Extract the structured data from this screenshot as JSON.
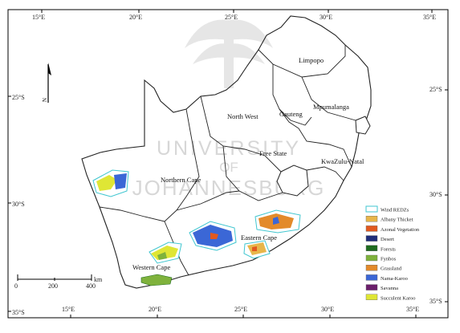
{
  "longitude_labels": [
    "15°E",
    "20°E",
    "25°E",
    "30°E",
    "35°E"
  ],
  "latitude_labels": [
    "25°S",
    "30°S",
    "35°S"
  ],
  "provinces": {
    "limpopo": "Limpopo",
    "north_west": "North West",
    "gauteng": "Gauteng",
    "mpumalanga": "Mpumalanga",
    "free_state": "Free State",
    "kwazulu_natal": "KwaZulu-Natal",
    "northern_cape": "Northern Cape",
    "eastern_cape": "Eastern Cape",
    "western_cape": "Western Cape"
  },
  "north_arrow": {
    "label": "N"
  },
  "scale_bar": {
    "ticks": [
      "0",
      "200",
      "400"
    ],
    "unit": "km"
  },
  "legend": [
    {
      "label": "Wind REDZs",
      "color": "#ffffff",
      "outline": "#3fc6d0"
    },
    {
      "label": "Albany Thicket",
      "color": "#e8b64a"
    },
    {
      "label": "Azonal Vegetation",
      "color": "#e2591f"
    },
    {
      "label": "Desert",
      "color": "#1f2d7a"
    },
    {
      "label": "Forests",
      "color": "#1f6b1f"
    },
    {
      "label": "Fynbos",
      "color": "#7fb23c"
    },
    {
      "label": "Grassland",
      "color": "#e38a2a"
    },
    {
      "label": "Nama-Karoo",
      "color": "#3b67d6"
    },
    {
      "label": "Savanna",
      "color": "#6b1f6b"
    },
    {
      "label": "Succulent Karoo",
      "color": "#dfe635"
    }
  ],
  "watermark": {
    "line1": "UNIVERSITY",
    "line2": "OF",
    "line3": "JOHANNESBURG"
  }
}
